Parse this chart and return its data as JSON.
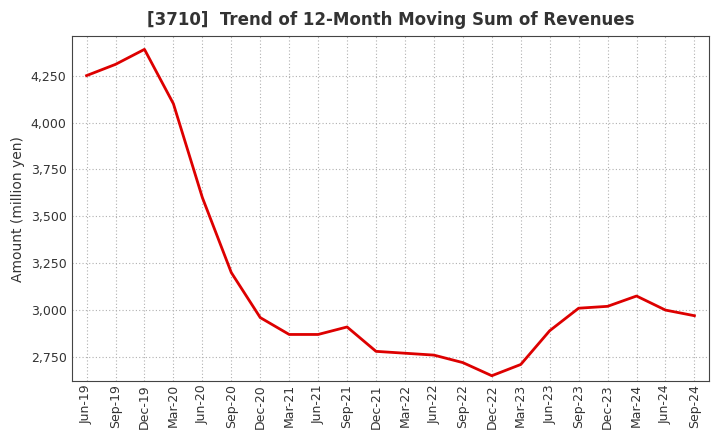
{
  "title": "[3710]  Trend of 12-Month Moving Sum of Revenues",
  "ylabel": "Amount (million yen)",
  "line_color": "#dd0000",
  "background_color": "#ffffff",
  "grid_color": "#b0b0b0",
  "x_labels": [
    "Jun-19",
    "Sep-19",
    "Dec-19",
    "Mar-20",
    "Jun-20",
    "Sep-20",
    "Dec-20",
    "Mar-21",
    "Jun-21",
    "Sep-21",
    "Dec-21",
    "Mar-22",
    "Jun-22",
    "Sep-22",
    "Dec-22",
    "Mar-23",
    "Jun-23",
    "Sep-23",
    "Dec-23",
    "Mar-24",
    "Jun-24",
    "Sep-24"
  ],
  "y_values": [
    4250,
    4310,
    4390,
    4100,
    3600,
    3200,
    2960,
    2870,
    2870,
    2910,
    2780,
    2770,
    2760,
    2720,
    2650,
    2710,
    2890,
    3010,
    3020,
    3075,
    3000,
    2970
  ],
  "ylim": [
    2620,
    4460
  ],
  "yticks": [
    2750,
    3000,
    3250,
    3500,
    3750,
    4000,
    4250
  ],
  "title_fontsize": 12,
  "ylabel_fontsize": 10,
  "tick_fontsize": 9,
  "line_width": 2.0,
  "spine_color": "#444444"
}
